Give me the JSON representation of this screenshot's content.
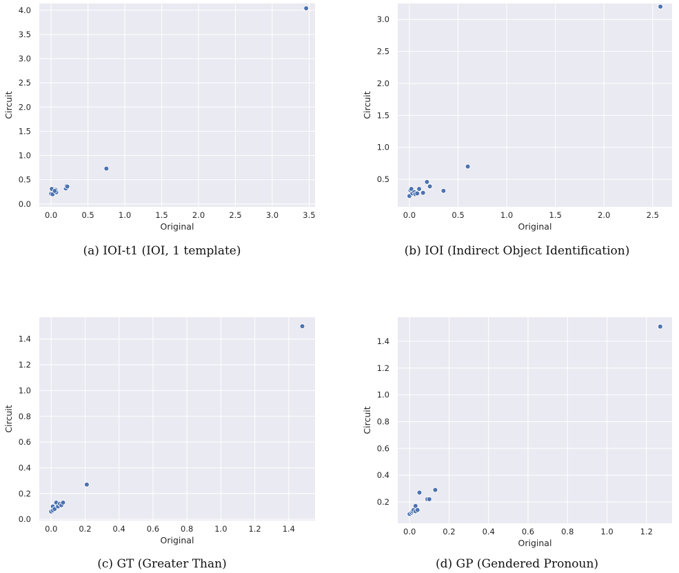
{
  "chart_data": [
    {
      "type": "scatter",
      "caption": "(a) IOI-t1 (IOI, 1 template)",
      "xlabel": "Original",
      "ylabel": "Circuit",
      "xlim": [
        -0.16,
        3.58
      ],
      "ylim": [
        -0.06,
        4.14
      ],
      "xticks": [
        0.0,
        0.5,
        1.0,
        1.5,
        2.0,
        2.5,
        3.0,
        3.5
      ],
      "yticks": [
        0.0,
        0.5,
        1.0,
        1.5,
        2.0,
        2.5,
        3.0,
        3.5,
        4.0
      ],
      "tick_decimals": 1,
      "grid": true,
      "points": [
        {
          "x": 0.01,
          "y": 0.31
        },
        {
          "x": 0.0,
          "y": 0.21
        },
        {
          "x": 0.02,
          "y": 0.2
        },
        {
          "x": 0.06,
          "y": 0.29
        },
        {
          "x": 0.07,
          "y": 0.24
        },
        {
          "x": 0.05,
          "y": 0.27
        },
        {
          "x": 0.2,
          "y": 0.32
        },
        {
          "x": 0.21,
          "y": 0.37
        },
        {
          "x": 0.22,
          "y": 0.36
        },
        {
          "x": 0.75,
          "y": 0.73
        },
        {
          "x": 3.46,
          "y": 4.04
        }
      ]
    },
    {
      "type": "scatter",
      "caption": "(b) IOI (Indirect Object Identification)",
      "xlabel": "Original",
      "ylabel": "Circuit",
      "xlim": [
        -0.12,
        2.7
      ],
      "ylim": [
        0.07,
        3.25
      ],
      "xticks": [
        0.0,
        0.5,
        1.0,
        1.5,
        2.0,
        2.5
      ],
      "yticks": [
        0.5,
        1.0,
        1.5,
        2.0,
        2.5,
        3.0
      ],
      "tick_decimals": 1,
      "grid": true,
      "points": [
        {
          "x": 0.0,
          "y": 0.24
        },
        {
          "x": 0.01,
          "y": 0.33
        },
        {
          "x": 0.02,
          "y": 0.35
        },
        {
          "x": 0.03,
          "y": 0.28
        },
        {
          "x": 0.05,
          "y": 0.3
        },
        {
          "x": 0.06,
          "y": 0.27
        },
        {
          "x": 0.08,
          "y": 0.28
        },
        {
          "x": 0.1,
          "y": 0.35
        },
        {
          "x": 0.14,
          "y": 0.29
        },
        {
          "x": 0.18,
          "y": 0.46
        },
        {
          "x": 0.21,
          "y": 0.39
        },
        {
          "x": 0.35,
          "y": 0.32
        },
        {
          "x": 0.6,
          "y": 0.7
        },
        {
          "x": 2.58,
          "y": 3.2
        }
      ]
    },
    {
      "type": "scatter",
      "caption": "(c) GT (Greater Than)",
      "xlabel": "Original",
      "ylabel": "Circuit",
      "xlim": [
        -0.07,
        1.555
      ],
      "ylim": [
        -0.01,
        1.57
      ],
      "xticks": [
        0.0,
        0.2,
        0.4,
        0.6,
        0.8,
        1.0,
        1.2,
        1.4
      ],
      "yticks": [
        0.0,
        0.2,
        0.4,
        0.6,
        0.8,
        1.0,
        1.2,
        1.4
      ],
      "tick_decimals": 1,
      "grid": true,
      "points": [
        {
          "x": 0.0,
          "y": 0.06
        },
        {
          "x": 0.01,
          "y": 0.07
        },
        {
          "x": 0.01,
          "y": 0.1
        },
        {
          "x": 0.02,
          "y": 0.08
        },
        {
          "x": 0.03,
          "y": 0.13
        },
        {
          "x": 0.04,
          "y": 0.1
        },
        {
          "x": 0.05,
          "y": 0.12
        },
        {
          "x": 0.06,
          "y": 0.11
        },
        {
          "x": 0.07,
          "y": 0.13
        },
        {
          "x": 0.21,
          "y": 0.27
        },
        {
          "x": 1.48,
          "y": 1.5
        }
      ]
    },
    {
      "type": "scatter",
      "caption": "(d) GP (Gendered Pronoun)",
      "xlabel": "Original",
      "ylabel": "Circuit",
      "xlim": [
        -0.06,
        1.33
      ],
      "ylim": [
        0.04,
        1.58
      ],
      "xticks": [
        0.0,
        0.2,
        0.4,
        0.6,
        0.8,
        1.0,
        1.2
      ],
      "yticks": [
        0.2,
        0.4,
        0.6,
        0.8,
        1.0,
        1.2,
        1.4
      ],
      "tick_decimals": 1,
      "grid": true,
      "points": [
        {
          "x": 0.0,
          "y": 0.11
        },
        {
          "x": 0.01,
          "y": 0.12
        },
        {
          "x": 0.015,
          "y": 0.13
        },
        {
          "x": 0.02,
          "y": 0.14
        },
        {
          "x": 0.03,
          "y": 0.13
        },
        {
          "x": 0.03,
          "y": 0.17
        },
        {
          "x": 0.04,
          "y": 0.14
        },
        {
          "x": 0.05,
          "y": 0.27
        },
        {
          "x": 0.09,
          "y": 0.22
        },
        {
          "x": 0.1,
          "y": 0.22
        },
        {
          "x": 0.13,
          "y": 0.29
        },
        {
          "x": 1.27,
          "y": 1.51
        }
      ]
    }
  ]
}
